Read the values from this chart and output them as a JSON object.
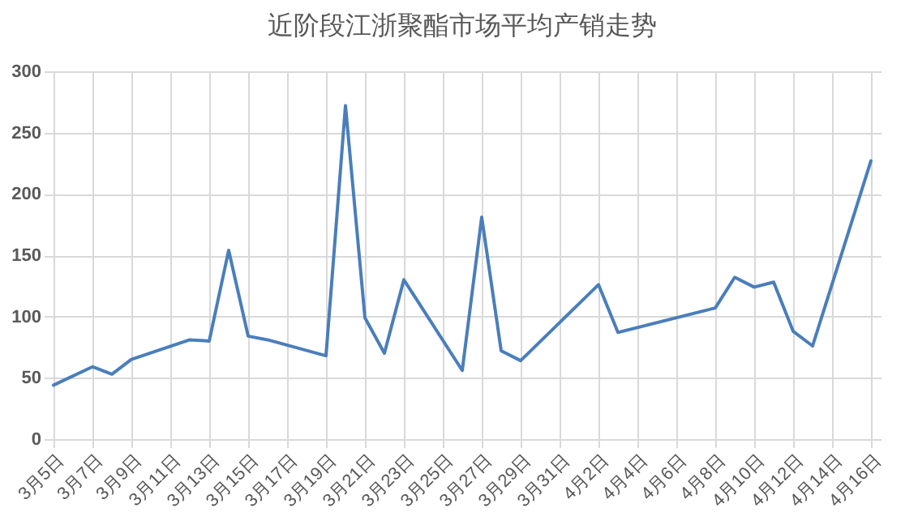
{
  "chart_data": {
    "type": "line",
    "title": "近阶段江浙聚酯市场平均产销走势",
    "x": [
      "--03-05",
      "--03-07",
      "--03-08",
      "--03-09",
      "--03-12",
      "--03-13",
      "--03-14",
      "--03-15",
      "--03-16",
      "--03-19",
      "--03-20",
      "--03-21",
      "--03-22",
      "--03-23",
      "--03-26",
      "--03-27",
      "--03-28",
      "--03-29",
      "--04-02",
      "--04-03",
      "--04-08",
      "--04-09",
      "--04-10",
      "--04-11",
      "--04-12",
      "--04-13",
      "--04-16"
    ],
    "series": [
      {
        "color": "#4a7ebb",
        "values": [
          44,
          59,
          53,
          65,
          81,
          80,
          154,
          84,
          81,
          68,
          272,
          99,
          70,
          130,
          56,
          181,
          72,
          64,
          126,
          87,
          107,
          132,
          124,
          128,
          88,
          76,
          227
        ]
      }
    ],
    "xlim": [
      "--03-04T12:00",
      "--04-16T12:00"
    ],
    "xticks": [
      {
        "value": "--03-05",
        "label": "3月5日"
      },
      {
        "value": "--03-07",
        "label": "3月7日"
      },
      {
        "value": "--03-09",
        "label": "3月9日"
      },
      {
        "value": "--03-11",
        "label": "3月11日"
      },
      {
        "value": "--03-13",
        "label": "3月13日"
      },
      {
        "value": "--03-15",
        "label": "3月15日"
      },
      {
        "value": "--03-17",
        "label": "3月17日"
      },
      {
        "value": "--03-19",
        "label": "3月19日"
      },
      {
        "value": "--03-21",
        "label": "3月21日"
      },
      {
        "value": "--03-23",
        "label": "3月23日"
      },
      {
        "value": "--03-25",
        "label": "3月25日"
      },
      {
        "value": "--03-27",
        "label": "3月27日"
      },
      {
        "value": "--03-29",
        "label": "3月29日"
      },
      {
        "value": "--03-31",
        "label": "3月31日"
      },
      {
        "value": "--04-02",
        "label": "4月2日"
      },
      {
        "value": "--04-04",
        "label": "4月4日"
      },
      {
        "value": "--04-06",
        "label": "4月6日"
      },
      {
        "value": "--04-08",
        "label": "4月8日"
      },
      {
        "value": "--04-10",
        "label": "4月10日"
      },
      {
        "value": "--04-12",
        "label": "4月12日"
      },
      {
        "value": "--04-14",
        "label": "4月14日"
      },
      {
        "value": "--04-16",
        "label": "4月16日"
      }
    ],
    "ylim": [
      0,
      300
    ],
    "yticks": [
      0,
      50,
      100,
      150,
      200,
      250,
      300
    ],
    "grid": true,
    "marker": "none",
    "line_style": "solid"
  }
}
